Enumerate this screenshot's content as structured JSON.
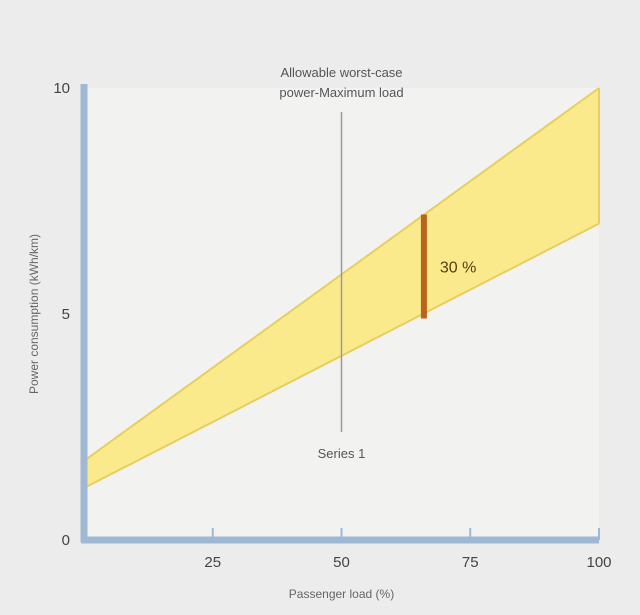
{
  "chart_data": {
    "type": "area",
    "title": "",
    "xlabel": "Passenger load (%)",
    "ylabel": "Power consumption (kWh/km)",
    "xlim": [
      0,
      100
    ],
    "ylim": [
      0,
      10
    ],
    "x_ticks": [
      {
        "value": 25,
        "label": "25"
      },
      {
        "value": 50,
        "label": "50"
      },
      {
        "value": 75,
        "label": "75"
      },
      {
        "value": 100,
        "label": "100"
      }
    ],
    "y_ticks": [
      {
        "value": 0,
        "label": "0"
      },
      {
        "value": 5,
        "label": "5"
      },
      {
        "value": 10,
        "label": "10"
      }
    ],
    "band": {
      "x": [
        0,
        100
      ],
      "upper": [
        1.75,
        10.0
      ],
      "lower": [
        1.15,
        7.0
      ]
    },
    "reference_line": {
      "x": 50,
      "label_top": [
        "Allowable worst-case",
        "power-Maximum load"
      ],
      "label_bottom": "Series 1"
    },
    "range_marker": {
      "x": 66,
      "y_low": 4.9,
      "y_high": 7.2,
      "label": "30 %"
    },
    "colors": {
      "background": "#ececec",
      "plot_background": "#f2f2f0",
      "band_fill": "#faea8c",
      "band_edge": "#e6cf5e",
      "axis": "#9fb8d4",
      "marker": "#b8641e",
      "reference_line": "#999999"
    },
    "grid": false
  }
}
